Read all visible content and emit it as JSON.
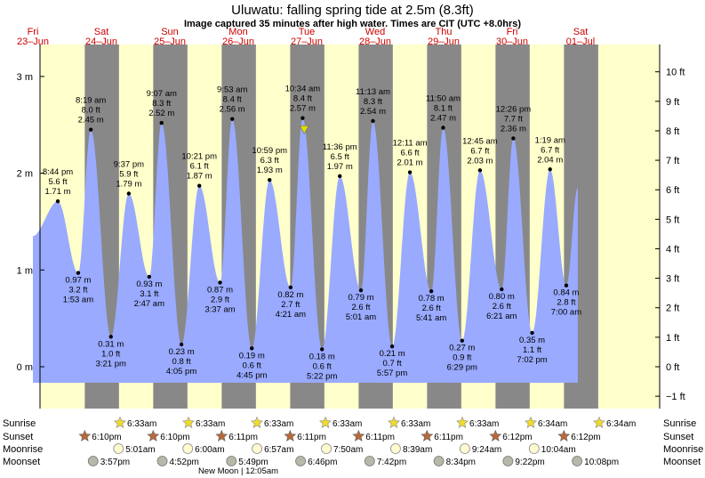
{
  "title": "Uluwatu: falling  spring tide at 2.5m (8.3ft)",
  "subtitle": "Image captured 35 minutes after high water. Times are CIT (UTC +8.0hrs)",
  "colors": {
    "day": "#ffffcc",
    "night": "#888888",
    "water": "#99aaff",
    "day_label": "#cc0000"
  },
  "chart_data": {
    "type": "area",
    "title": "Uluwatu: falling  spring tide at 2.5m (8.3ft)",
    "subtitle": "Image captured 35 minutes after high water. Times are CIT (UTC +8.0hrs)",
    "ylabel_left": "m",
    "ylabel_right": "ft",
    "ylim_m": [
      -0.6,
      3.25
    ],
    "y_ticks_left": [
      {
        "v": 0,
        "label": "0 m"
      },
      {
        "v": 1,
        "label": "1 m"
      },
      {
        "v": 2,
        "label": "2 m"
      },
      {
        "v": 3,
        "label": "3 m"
      }
    ],
    "y_ticks_right": [
      {
        "v": -1,
        "label": "−1 ft"
      },
      {
        "v": 0,
        "label": "0 ft"
      },
      {
        "v": 1,
        "label": "1 ft"
      },
      {
        "v": 2,
        "label": "2 ft"
      },
      {
        "v": 3,
        "label": "3 ft"
      },
      {
        "v": 4,
        "label": "4 ft"
      },
      {
        "v": 5,
        "label": "5 ft"
      },
      {
        "v": 6,
        "label": "6 ft"
      },
      {
        "v": 7,
        "label": "7 ft"
      },
      {
        "v": 8,
        "label": "8 ft"
      },
      {
        "v": 9,
        "label": "9 ft"
      },
      {
        "v": 10,
        "label": "10 ft"
      }
    ],
    "days": [
      {
        "dow": "Fri",
        "date": "23–Jun"
      },
      {
        "dow": "Sat",
        "date": "24–Jun"
      },
      {
        "dow": "Sun",
        "date": "25–Jun"
      },
      {
        "dow": "Mon",
        "date": "26–Jun"
      },
      {
        "dow": "Tue",
        "date": "27–Jun"
      },
      {
        "dow": "Wed",
        "date": "28–Jun"
      },
      {
        "dow": "Thu",
        "date": "29–Jun"
      },
      {
        "dow": "Fri",
        "date": "30–Jun"
      },
      {
        "dow": "Sat",
        "date": "01–Jul"
      }
    ],
    "night_bands_days": [
      [
        0.7579,
        1.2576
      ],
      [
        1.7579,
        2.2576
      ],
      [
        2.7583,
        3.2576
      ],
      [
        3.7583,
        4.2576
      ],
      [
        4.7583,
        5.2576
      ],
      [
        5.7583,
        6.2576
      ],
      [
        6.7583,
        7.2576
      ],
      [
        7.7583,
        8.2583
      ]
    ],
    "tides": [
      {
        "t": 0.3639,
        "m": 1.71,
        "time": "8:44 pm",
        "ft": "5.6 ft",
        "h": "1.71 m",
        "type": "high"
      },
      {
        "t": 0.6618,
        "m": 0.97,
        "time": "1:53 am",
        "ft": "3.2 ft",
        "h": "0.97 m",
        "type": "low"
      },
      {
        "t": 0.8465,
        "m": 2.45,
        "time": "8:19 am",
        "ft": "8.0 ft",
        "h": "2.45 m",
        "type": "high"
      },
      {
        "t": 1.1396,
        "m": 0.31,
        "time": "3:21 pm",
        "ft": "1.0 ft",
        "h": "0.31 m",
        "type": "low"
      },
      {
        "t": 1.4007,
        "m": 1.79,
        "time": "9:37 pm",
        "ft": "5.9 ft",
        "h": "1.79 m",
        "type": "high"
      },
      {
        "t": 1.6993,
        "m": 0.93,
        "time": "2:47 am",
        "ft": "3.1 ft",
        "h": "0.93 m",
        "type": "low"
      },
      {
        "t": 1.8799,
        "m": 2.52,
        "time": "9:07 am",
        "ft": "8.3 ft",
        "h": "2.52 m",
        "type": "high"
      },
      {
        "t": 2.1701,
        "m": 0.23,
        "time": "4:05 pm",
        "ft": "0.8 ft",
        "h": "0.23 m",
        "type": "low"
      },
      {
        "t": 2.4313,
        "m": 1.87,
        "time": "10:21 pm",
        "ft": "6.1 ft",
        "h": "1.87 m",
        "type": "high"
      },
      {
        "t": 2.734,
        "m": 0.87,
        "time": "3:37 am",
        "ft": "2.9 ft",
        "h": "0.87 m",
        "type": "low"
      },
      {
        "t": 2.9118,
        "m": 2.56,
        "time": "9:53 am",
        "ft": "8.4 ft",
        "h": "2.56 m",
        "type": "high"
      },
      {
        "t": 3.1979,
        "m": 0.19,
        "time": "4:45 pm",
        "ft": "0.6 ft",
        "h": "0.19 m",
        "type": "low"
      },
      {
        "t": 3.4576,
        "m": 1.93,
        "time": "10:59 pm",
        "ft": "6.3 ft",
        "h": "1.93 m",
        "type": "high"
      },
      {
        "t": 3.7646,
        "m": 0.82,
        "time": "4:21 am",
        "ft": "2.7 ft",
        "h": "0.82 m",
        "type": "low"
      },
      {
        "t": 3.9403,
        "m": 2.57,
        "time": "10:34 am",
        "ft": "8.4 ft",
        "h": "2.57 m",
        "type": "high"
      },
      {
        "t": 4.2236,
        "m": 0.18,
        "time": "5:22 pm",
        "ft": "0.6 ft",
        "h": "0.18 m",
        "type": "low"
      },
      {
        "t": 4.4833,
        "m": 1.97,
        "time": "11:36 pm",
        "ft": "6.5 ft",
        "h": "1.97 m",
        "type": "high"
      },
      {
        "t": 4.7924,
        "m": 0.79,
        "time": "5:01 am",
        "ft": "2.6 ft",
        "h": "0.79 m",
        "type": "low"
      },
      {
        "t": 4.9674,
        "m": 2.54,
        "time": "11:13 am",
        "ft": "8.3 ft",
        "h": "2.54 m",
        "type": "high"
      },
      {
        "t": 5.2479,
        "m": 0.21,
        "time": "5:57 pm",
        "ft": "0.7 ft",
        "h": "0.21 m",
        "type": "low"
      },
      {
        "t": 5.5076,
        "m": 2.01,
        "time": "12:11 am",
        "ft": "6.6 ft",
        "h": "2.01 m",
        "type": "high"
      },
      {
        "t": 5.8201,
        "m": 0.78,
        "time": "5:41 am",
        "ft": "2.6 ft",
        "h": "0.78 m",
        "type": "low"
      },
      {
        "t": 5.9931,
        "m": 2.47,
        "time": "11:50 am",
        "ft": "8.1 ft",
        "h": "2.47 m",
        "type": "high"
      },
      {
        "t": 6.2701,
        "m": 0.27,
        "time": "6:29 pm",
        "ft": "0.9 ft",
        "h": "0.27 m",
        "type": "low"
      },
      {
        "t": 6.5313,
        "m": 2.03,
        "time": "12:45 am",
        "ft": "6.7 ft",
        "h": "2.03 m",
        "type": "high"
      },
      {
        "t": 6.8479,
        "m": 0.8,
        "time": "6:21 am",
        "ft": "2.6 ft",
        "h": "0.80 m",
        "type": "low"
      },
      {
        "t": 7.0181,
        "m": 2.36,
        "time": "12:26 pm",
        "ft": "7.7 ft",
        "h": "2.36 m",
        "type": "high"
      },
      {
        "t": 7.2931,
        "m": 0.35,
        "time": "7:02 pm",
        "ft": "1.1 ft",
        "h": "0.35 m",
        "type": "low"
      },
      {
        "t": 7.5549,
        "m": 2.04,
        "time": "1:19 am",
        "ft": "6.7 ft",
        "h": "2.04 m",
        "type": "high"
      },
      {
        "t": 7.7917,
        "m": 0.84,
        "time": "7:00 am",
        "ft": "2.8 ft",
        "h": "0.84 m",
        "type": "low"
      }
    ],
    "curve_start": {
      "t": 0.0,
      "m": 1.35
    },
    "curve_end": {
      "t": 7.96,
      "m": 1.85
    },
    "marker": {
      "t": 3.9646,
      "m": 2.5
    }
  },
  "astro": {
    "rows": [
      "Sunrise",
      "Sunset",
      "Moonrise",
      "Moonset"
    ],
    "sunrise": [
      {
        "d": 1,
        "t": "6:33am"
      },
      {
        "d": 2,
        "t": "6:33am"
      },
      {
        "d": 3,
        "t": "6:33am"
      },
      {
        "d": 4,
        "t": "6:33am"
      },
      {
        "d": 5,
        "t": "6:33am"
      },
      {
        "d": 6,
        "t": "6:33am"
      },
      {
        "d": 7,
        "t": "6:34am"
      },
      {
        "d": 8,
        "t": "6:34am"
      }
    ],
    "sunset": [
      {
        "d": 0,
        "t": "6:10pm"
      },
      {
        "d": 1,
        "t": "6:10pm"
      },
      {
        "d": 2,
        "t": "6:11pm"
      },
      {
        "d": 3,
        "t": "6:11pm"
      },
      {
        "d": 4,
        "t": "6:11pm"
      },
      {
        "d": 5,
        "t": "6:11pm"
      },
      {
        "d": 6,
        "t": "6:12pm"
      },
      {
        "d": 7,
        "t": "6:12pm"
      }
    ],
    "moonrise": [
      {
        "d": 1,
        "t": "5:01am"
      },
      {
        "d": 2,
        "t": "6:00am"
      },
      {
        "d": 3,
        "t": "6:57am"
      },
      {
        "d": 4,
        "t": "7:50am"
      },
      {
        "d": 5,
        "t": "8:39am"
      },
      {
        "d": 6,
        "t": "9:24am"
      },
      {
        "d": 7,
        "t": "10:04am"
      }
    ],
    "moonset": [
      {
        "d": 0,
        "t": "3:57pm"
      },
      {
        "d": 1,
        "t": "4:52pm"
      },
      {
        "d": 2,
        "t": "5:49pm"
      },
      {
        "d": 3,
        "t": "6:46pm"
      },
      {
        "d": 4,
        "t": "7:42pm"
      },
      {
        "d": 5,
        "t": "8:34pm"
      },
      {
        "d": 6,
        "t": "9:22pm"
      },
      {
        "d": 7,
        "t": "10:08pm"
      }
    ],
    "new_moon": "New Moon | 12:05am"
  }
}
